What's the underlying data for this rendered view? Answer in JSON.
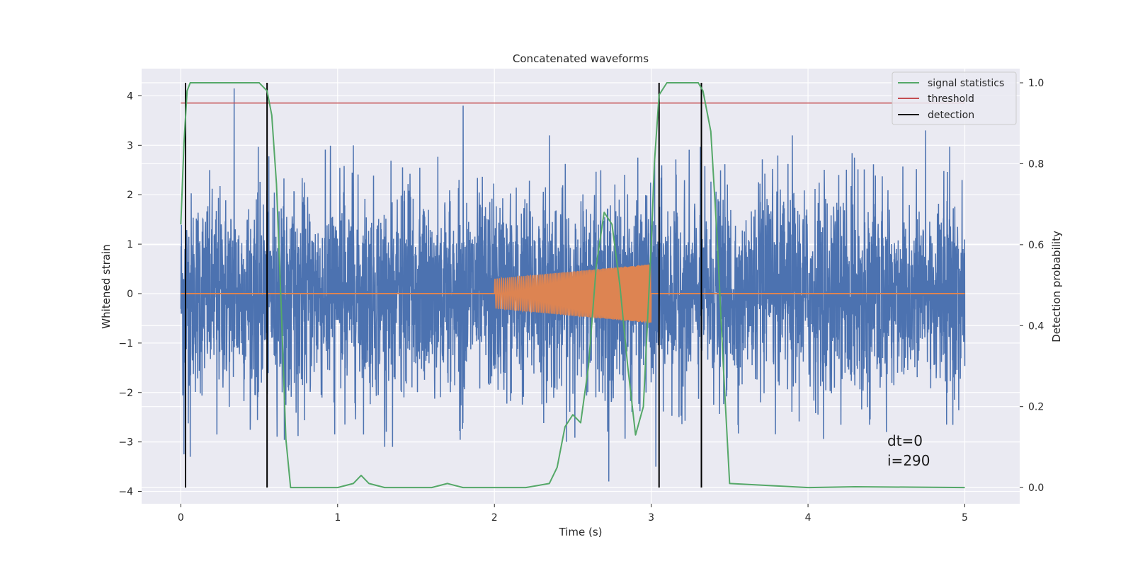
{
  "chart_data": {
    "type": "line",
    "title": "Concatenated waveforms",
    "xlabel": "Time (s)",
    "ylabel_left": "Whitened strain",
    "ylabel_right": "Detection probability",
    "xlim": [
      -0.25,
      5.35
    ],
    "ylim_left": [
      -4.25,
      4.55
    ],
    "ylim_right": [
      -0.04,
      1.035
    ],
    "x_ticks": [
      0,
      1,
      2,
      3,
      4,
      5
    ],
    "x_tick_labels": [
      "0",
      "1",
      "2",
      "3",
      "4",
      "5"
    ],
    "y_left_ticks": [
      -4,
      -3,
      -2,
      -1,
      0,
      1,
      2,
      3,
      4
    ],
    "y_left_tick_labels": [
      "−4",
      "−3",
      "−2",
      "−1",
      "0",
      "1",
      "2",
      "3",
      "4"
    ],
    "y_right_ticks": [
      0.0,
      0.2,
      0.4,
      0.6,
      0.8,
      1.0
    ],
    "y_right_tick_labels": [
      "0.0",
      "0.2",
      "0.4",
      "0.6",
      "0.8",
      "1.0"
    ],
    "grid": true,
    "legend_placement": "top-right",
    "series": [
      {
        "kind": "noise",
        "axis": "left",
        "color": "#4c72b0",
        "x_range": [
          0,
          5
        ],
        "amplitude_typical": 1.0,
        "peaks": [
          {
            "x": 0.34,
            "y": 4.15
          },
          {
            "x": 1.8,
            "y": 3.8
          },
          {
            "x": 4.75,
            "y": 3.3
          },
          {
            "x": 1.1,
            "y": 3.0
          },
          {
            "x": 2.35,
            "y": 3.2
          },
          {
            "x": 3.9,
            "y": 3.2
          },
          {
            "x": 0.02,
            "y": -3.25
          },
          {
            "x": 0.06,
            "y": -3.3
          },
          {
            "x": 0.23,
            "y": -2.85
          },
          {
            "x": 1.3,
            "y": -3.1
          },
          {
            "x": 2.73,
            "y": -3.8
          },
          {
            "x": 3.03,
            "y": -3.5
          },
          {
            "x": 4.5,
            "y": -2.8
          },
          {
            "x": 1.35,
            "y": -3.1
          }
        ]
      },
      {
        "kind": "chirp",
        "axis": "left",
        "color": "#dd8452",
        "x_range": [
          2.0,
          3.0
        ],
        "amplitude_start": 0.3,
        "amplitude_end": 0.6,
        "baseline_x_range": [
          0,
          5
        ],
        "baseline_y": 0
      },
      {
        "name": "signal statistics",
        "axis": "right",
        "color": "#55a868",
        "x": [
          0.0,
          0.02,
          0.04,
          0.06,
          0.1,
          0.5,
          0.55,
          0.58,
          0.61,
          0.64,
          0.67,
          0.7,
          0.8,
          1.0,
          1.1,
          1.15,
          1.2,
          1.3,
          1.6,
          1.7,
          1.8,
          2.2,
          2.35,
          2.4,
          2.45,
          2.5,
          2.55,
          2.6,
          2.65,
          2.7,
          2.75,
          2.8,
          2.85,
          2.9,
          2.95,
          3.0,
          3.02,
          3.05,
          3.1,
          3.3,
          3.33,
          3.38,
          3.42,
          3.46,
          3.5,
          4.0,
          4.3,
          5.0
        ],
        "y": [
          0.65,
          0.85,
          0.98,
          1.0,
          1.0,
          1.0,
          0.98,
          0.92,
          0.75,
          0.45,
          0.12,
          0.0,
          0.0,
          0.0,
          0.01,
          0.03,
          0.01,
          0.0,
          0.0,
          0.01,
          0.0,
          0.0,
          0.01,
          0.05,
          0.15,
          0.18,
          0.16,
          0.3,
          0.55,
          0.68,
          0.65,
          0.5,
          0.3,
          0.13,
          0.2,
          0.6,
          0.8,
          0.97,
          1.0,
          1.0,
          0.98,
          0.88,
          0.62,
          0.3,
          0.01,
          0.0,
          0.002,
          0.0
        ]
      },
      {
        "name": "threshold",
        "axis": "right",
        "color": "#c44e52",
        "x": [
          0.0,
          5.0
        ],
        "y": [
          0.95,
          0.95
        ]
      },
      {
        "name": "detection",
        "axis": "right",
        "color": "#000000",
        "x_positions": [
          0.03,
          0.55,
          3.05,
          3.32
        ],
        "y_range": [
          0.0,
          1.0
        ]
      }
    ],
    "annotations": [
      "dt=0",
      "i=290"
    ]
  }
}
